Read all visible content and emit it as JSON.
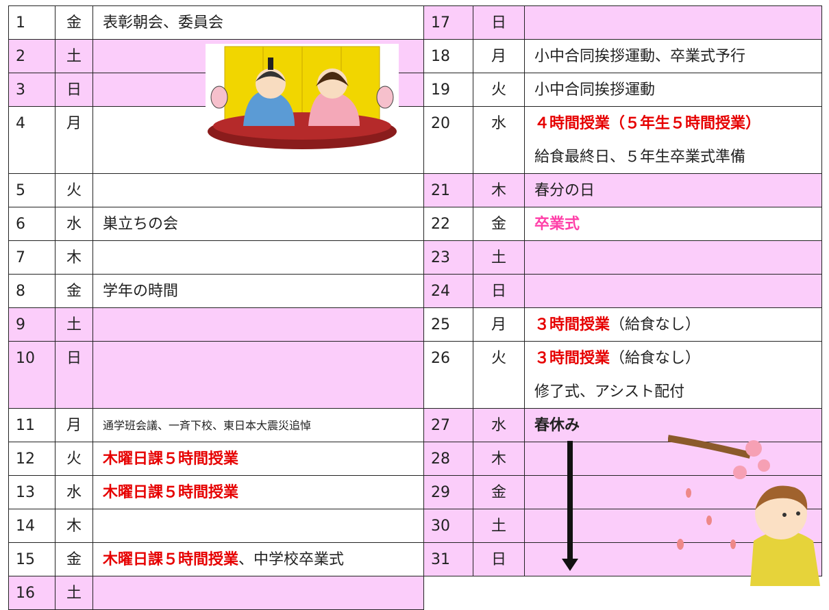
{
  "left": [
    {
      "day": "1",
      "weekday": "金",
      "lines": [
        [
          {
            "text": "表彰朝会、委員会"
          }
        ]
      ]
    },
    {
      "day": "2",
      "weekday": "土",
      "shaded": true,
      "lines": []
    },
    {
      "day": "3",
      "weekday": "日",
      "shaded": true,
      "lines": []
    },
    {
      "day": "4",
      "weekday": "月",
      "double": true,
      "lines": []
    },
    {
      "day": "5",
      "weekday": "火",
      "lines": []
    },
    {
      "day": "6",
      "weekday": "水",
      "lines": [
        [
          {
            "text": "巣立ちの会"
          }
        ]
      ]
    },
    {
      "day": "7",
      "weekday": "木",
      "lines": []
    },
    {
      "day": "8",
      "weekday": "金",
      "lines": [
        [
          {
            "text": "学年の時間"
          }
        ]
      ]
    },
    {
      "day": "9",
      "weekday": "土",
      "shaded": true,
      "lines": []
    },
    {
      "day": "10",
      "weekday": "日",
      "shaded": true,
      "double": true,
      "lines": []
    },
    {
      "day": "11",
      "weekday": "月",
      "small": true,
      "lines": [
        [
          {
            "text": "通学班会議、一斉下校、東日本大震災追悼"
          }
        ]
      ]
    },
    {
      "day": "12",
      "weekday": "火",
      "lines": [
        [
          {
            "text": "木曜日課５時間授業",
            "color": "#e60000"
          }
        ]
      ]
    },
    {
      "day": "13",
      "weekday": "水",
      "lines": [
        [
          {
            "text": "木曜日課５時間授業",
            "color": "#e60000"
          }
        ]
      ]
    },
    {
      "day": "14",
      "weekday": "木",
      "lines": []
    },
    {
      "day": "15",
      "weekday": "金",
      "lines": [
        [
          {
            "text": "木曜日課５時間授業",
            "color": "#e60000"
          },
          {
            "text": "、中学校卒業式"
          }
        ]
      ]
    },
    {
      "day": "16",
      "weekday": "土",
      "shaded": true,
      "lines": []
    }
  ],
  "right": [
    {
      "day": "17",
      "weekday": "日",
      "shaded": true,
      "lines": []
    },
    {
      "day": "18",
      "weekday": "月",
      "lines": [
        [
          {
            "text": "小中合同挨拶運動、卒業式予行"
          }
        ]
      ]
    },
    {
      "day": "19",
      "weekday": "火",
      "lines": [
        [
          {
            "text": "小中合同挨拶運動"
          }
        ]
      ]
    },
    {
      "day": "20",
      "weekday": "水",
      "double": true,
      "lines": [
        [
          {
            "text": "４時間授業（５年生５時間授業）",
            "color": "#e60000"
          }
        ],
        [
          {
            "text": "給食最終日、５年生卒業式準備"
          }
        ]
      ]
    },
    {
      "day": "21",
      "weekday": "木",
      "shaded": true,
      "lines": [
        [
          {
            "text": "春分の日"
          }
        ]
      ]
    },
    {
      "day": "22",
      "weekday": "金",
      "lines": [
        [
          {
            "text": "卒業式",
            "color": "#ff3fa8"
          }
        ]
      ]
    },
    {
      "day": "23",
      "weekday": "土",
      "shaded": true,
      "lines": []
    },
    {
      "day": "24",
      "weekday": "日",
      "shaded": true,
      "lines": []
    },
    {
      "day": "25",
      "weekday": "月",
      "lines": [
        [
          {
            "text": "３時間授業",
            "color": "#e60000"
          },
          {
            "text": "（給食なし）"
          }
        ]
      ]
    },
    {
      "day": "26",
      "weekday": "火",
      "double": true,
      "lines": [
        [
          {
            "text": "３時間授業",
            "color": "#e60000"
          },
          {
            "text": "（給食なし）"
          }
        ],
        [
          {
            "text": "修了式、アシスト配付"
          }
        ]
      ]
    },
    {
      "day": "27",
      "weekday": "水",
      "shaded": true,
      "lines": [
        [
          {
            "text": "春休み",
            "bold": true
          }
        ]
      ]
    },
    {
      "day": "28",
      "weekday": "木",
      "shaded": true,
      "lines": []
    },
    {
      "day": "29",
      "weekday": "金",
      "shaded": true,
      "lines": []
    },
    {
      "day": "30",
      "weekday": "土",
      "shaded": true,
      "lines": []
    },
    {
      "day": "31",
      "weekday": "日",
      "shaded": true,
      "lines": []
    }
  ]
}
